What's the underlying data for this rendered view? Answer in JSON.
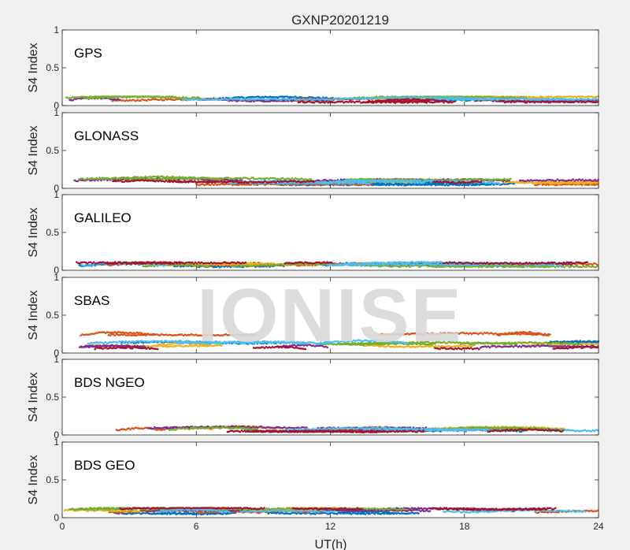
{
  "figure": {
    "title": "GXNP20201219",
    "watermark": "IONISE",
    "xlabel": "UT(h)",
    "ylabel": "S4 Index"
  },
  "colors": [
    "#0072BD",
    "#D95319",
    "#EDB120",
    "#7E2F8E",
    "#77AC30",
    "#4DBEEE",
    "#A2142F"
  ],
  "chart_data": [
    {
      "type": "scatter",
      "panel": "GPS",
      "xlim": [
        0,
        24
      ],
      "ylim": [
        0,
        1
      ],
      "xticks": [
        0,
        6,
        12,
        18,
        24
      ],
      "yticks": [
        0,
        0.5,
        1
      ],
      "yticklabels": [
        "0",
        "0.5",
        "1"
      ],
      "typical_s4_range": [
        0.03,
        0.12
      ],
      "series_levels": [
        0.08,
        0.06,
        0.09,
        0.07,
        0.1,
        0.08,
        0.05
      ]
    },
    {
      "type": "scatter",
      "panel": "GLONASS",
      "xlim": [
        0,
        24
      ],
      "ylim": [
        0,
        1
      ],
      "xticks": [
        0,
        6,
        12,
        18,
        24
      ],
      "yticks": [
        0,
        0.5,
        1
      ],
      "yticklabels": [
        "0",
        "0.5",
        "1"
      ],
      "typical_s4_range": [
        0.03,
        0.18
      ],
      "series_levels": [
        0.06,
        0.05,
        0.08,
        0.1,
        0.12,
        0.07,
        0.09
      ]
    },
    {
      "type": "scatter",
      "panel": "GALILEO",
      "xlim": [
        0,
        24
      ],
      "ylim": [
        0,
        1
      ],
      "xticks": [
        0,
        6,
        12,
        18,
        24
      ],
      "yticks": [
        0,
        0.5,
        1
      ],
      "yticklabels": [
        "0",
        "0.5",
        "1"
      ],
      "typical_s4_range": [
        0.03,
        0.14
      ],
      "series_levels": [
        0.06,
        0.07,
        0.09,
        0.08,
        0.05,
        0.07,
        0.1
      ]
    },
    {
      "type": "scatter",
      "panel": "SBAS",
      "xlim": [
        0,
        24
      ],
      "ylim": [
        0,
        1
      ],
      "xticks": [
        0,
        6,
        12,
        18,
        24
      ],
      "yticks": [
        0,
        0.5,
        1
      ],
      "yticklabels": [
        "0",
        "0.5",
        "1"
      ],
      "typical_s4_range": [
        0.05,
        0.35
      ],
      "series_levels": [
        0.14,
        0.24,
        0.1,
        0.08,
        0.12,
        0.13,
        0.06
      ]
    },
    {
      "type": "scatter",
      "panel": "BDS NGEO",
      "xlim": [
        0,
        24
      ],
      "ylim": [
        0,
        1
      ],
      "xticks": [
        0,
        6,
        12,
        18,
        24
      ],
      "yticks": [
        0,
        0.5,
        1
      ],
      "yticklabels": [
        "0",
        "0.5",
        "1"
      ],
      "typical_s4_range": [
        0.02,
        0.14
      ],
      "series_levels": [
        0.05,
        0.06,
        0.08,
        0.09,
        0.07,
        0.06,
        0.05
      ]
    },
    {
      "type": "scatter",
      "panel": "BDS GEO",
      "xlim": [
        0,
        24
      ],
      "ylim": [
        0,
        1
      ],
      "xticks": [
        0,
        6,
        12,
        18,
        24
      ],
      "yticks": [
        0,
        0.5,
        1
      ],
      "yticklabels": [
        "0",
        "0.5",
        "1"
      ],
      "xticklabels": [
        "0",
        "6",
        "12",
        "18",
        "24"
      ],
      "typical_s4_range": [
        0.04,
        0.13
      ],
      "series_levels": [
        0.06,
        0.07,
        0.1,
        0.09,
        0.11,
        0.08,
        0.12
      ]
    }
  ]
}
